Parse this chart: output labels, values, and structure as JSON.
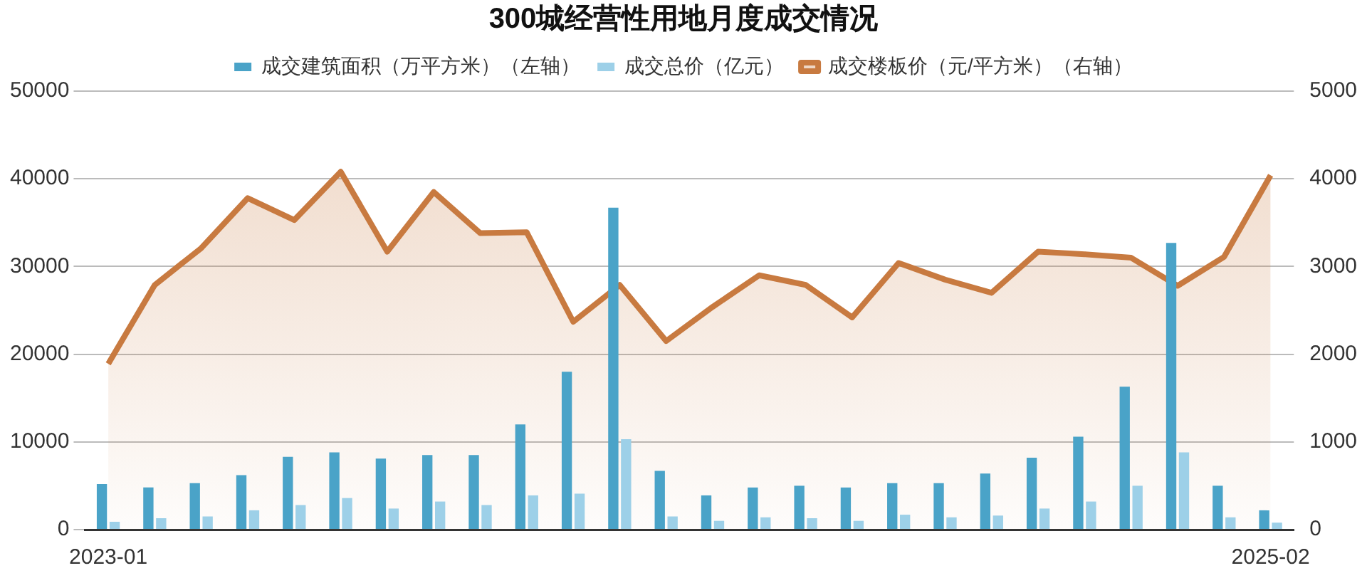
{
  "chart_data": {
    "type": "bar",
    "title": "300城经营性用地月度成交情况",
    "categories": [
      "2023-01",
      null,
      null,
      null,
      null,
      null,
      null,
      null,
      null,
      null,
      null,
      null,
      null,
      null,
      null,
      null,
      null,
      null,
      null,
      null,
      null,
      null,
      null,
      null,
      null,
      "2025-02"
    ],
    "series": [
      {
        "name": "成交建筑面积（万平方米）（左轴）",
        "color": "#4aa3c8",
        "values": [
          5200,
          4800,
          5300,
          6200,
          8300,
          8800,
          8100,
          8500,
          8500,
          12000,
          18000,
          36700,
          6700,
          3900,
          4800,
          5000,
          4800,
          5300,
          5300,
          6400,
          8200,
          10600,
          16300,
          32700,
          5000,
          2200
        ]
      },
      {
        "name": "成交总价（亿元）",
        "color": "#9dd0e8",
        "values": [
          900,
          1300,
          1500,
          2200,
          2800,
          3600,
          2400,
          3200,
          2800,
          3900,
          4100,
          10300,
          1500,
          1000,
          1400,
          1300,
          1000,
          1700,
          1400,
          1600,
          2400,
          3200,
          5000,
          8800,
          1400,
          800
        ]
      },
      {
        "name": "成交楼板价（元/平方米）（右轴）",
        "type": "area",
        "axis": "y2",
        "color": "#c87a40",
        "values": [
          1890,
          2790,
          3210,
          3780,
          3530,
          4080,
          3170,
          3850,
          3380,
          3390,
          2370,
          2790,
          2150,
          2540,
          2900,
          2790,
          2420,
          3040,
          2850,
          2700,
          3170,
          3140,
          3100,
          2780,
          3110,
          4040
        ]
      }
    ],
    "ylim": [
      0,
      50000
    ],
    "yticks": [
      0,
      10000,
      20000,
      30000,
      40000,
      50000
    ],
    "y2lim": [
      0,
      5000
    ],
    "y2ticks": [
      0,
      1000,
      2000,
      3000,
      4000,
      5000
    ],
    "grid": "y",
    "legend": "top"
  }
}
